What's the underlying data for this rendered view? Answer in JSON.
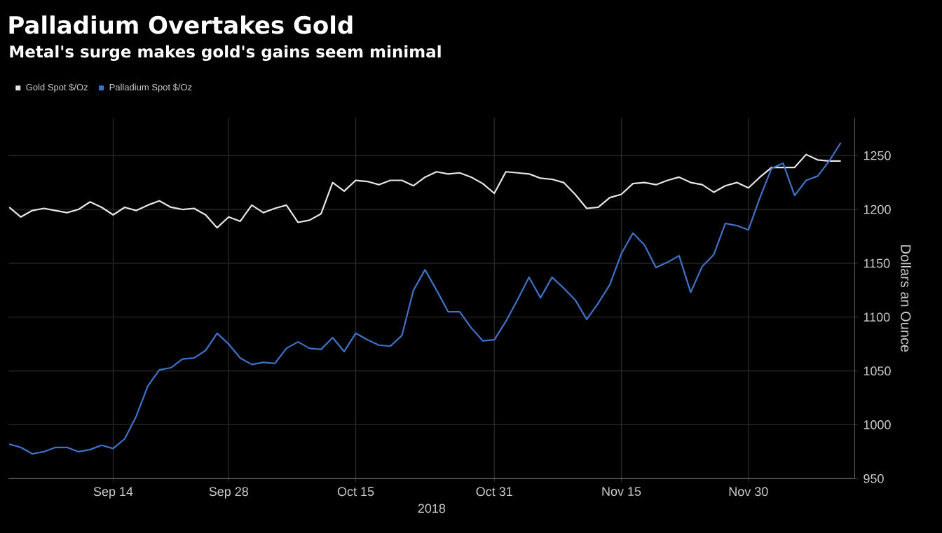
{
  "chart_data": {
    "type": "line",
    "title": "Palladium Overtakes Gold",
    "subtitle": "Metal's surge makes gold's gains seem minimal",
    "xlabel": "2018",
    "ylabel": "Dollars an Ounce",
    "categories": [
      null,
      null,
      null,
      null,
      null,
      null,
      null,
      null,
      null,
      "Sep 14",
      null,
      null,
      null,
      null,
      null,
      null,
      null,
      null,
      null,
      "Sep 28",
      null,
      null,
      null,
      null,
      null,
      null,
      null,
      null,
      null,
      null,
      "Oct 15",
      null,
      null,
      null,
      null,
      null,
      null,
      null,
      null,
      null,
      null,
      null,
      "Oct 31",
      null,
      null,
      null,
      null,
      null,
      null,
      null,
      null,
      null,
      null,
      "Nov 15",
      null,
      null,
      null,
      null,
      null,
      null,
      null,
      null,
      null,
      null,
      "Nov 30",
      null,
      null,
      null,
      null,
      null,
      null,
      null,
      null
    ],
    "series": [
      {
        "name": "Gold Spot $/Oz",
        "color": "#e6e6e6",
        "values": [
          1202,
          1193,
          1199,
          1201,
          1199,
          1197,
          1200,
          1207,
          1202,
          1195,
          1202,
          1199,
          1204,
          1208,
          1202,
          1200,
          1201,
          1195,
          1183,
          1193,
          1189,
          1204,
          1197,
          1201,
          1204,
          1188,
          1190,
          1196,
          1225,
          1217,
          1227,
          1226,
          1223,
          1227,
          1227,
          1222,
          1230,
          1235,
          1233,
          1234,
          1230,
          1224,
          1215,
          1235,
          1234,
          1233,
          1229,
          1228,
          1225,
          1214,
          1201,
          1202,
          1211,
          1214,
          1224,
          1225,
          1223,
          1227,
          1230,
          1225,
          1223,
          1216,
          1222,
          1225,
          1220,
          1230,
          1239,
          1239,
          1239,
          1251,
          1246,
          1245,
          1245
        ]
      },
      {
        "name": "Palladium Spot $/Oz",
        "color": "#3f72c8",
        "values": [
          982,
          979,
          973,
          975,
          979,
          979,
          975,
          977,
          981,
          978,
          987,
          1008,
          1036,
          1051,
          1053,
          1061,
          1062,
          1069,
          1085,
          1075,
          1062,
          1056,
          1058,
          1057,
          1071,
          1077,
          1071,
          1070,
          1081,
          1068,
          1085,
          1079,
          1074,
          1073,
          1083,
          1125,
          1144,
          1125,
          1105,
          1105,
          1090,
          1078,
          1079,
          1096,
          1116,
          1137,
          1118,
          1137,
          1127,
          1116,
          1098,
          1113,
          1130,
          1159,
          1178,
          1167,
          1146,
          1151,
          1157,
          1123,
          1147,
          1158,
          1187,
          1185,
          1181,
          1211,
          1238,
          1243,
          1213,
          1227,
          1231,
          1245,
          1262
        ]
      }
    ],
    "ylim": [
      950,
      1285
    ],
    "yticks": [
      950,
      1000,
      1050,
      1100,
      1150,
      1200,
      1250
    ],
    "grid": true,
    "legend": "top left"
  }
}
